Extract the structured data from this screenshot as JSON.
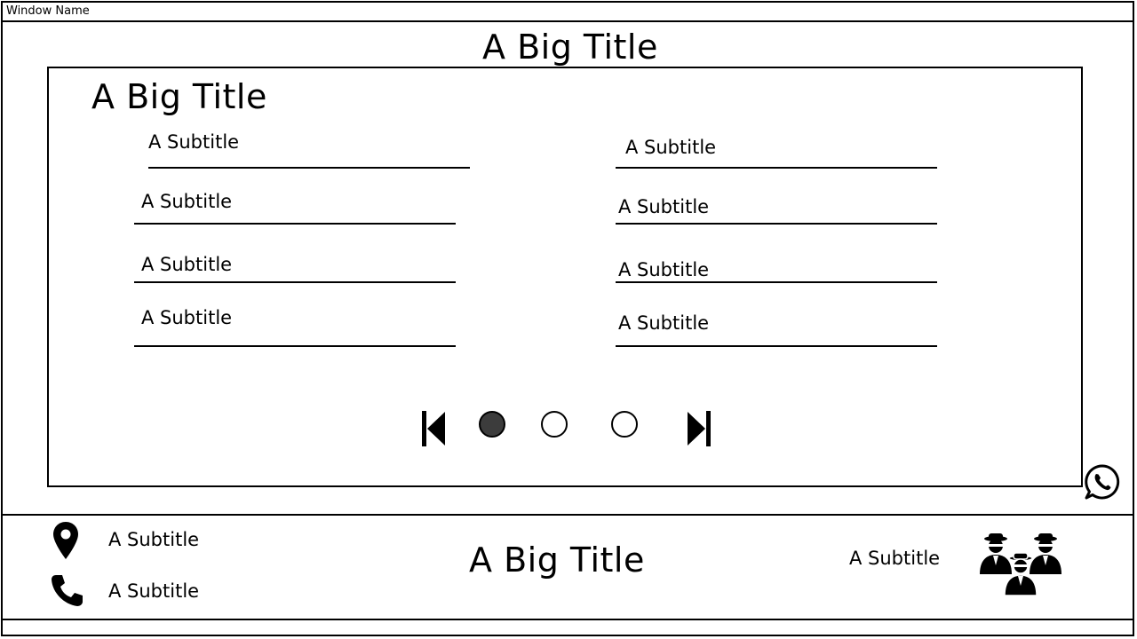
{
  "window": {
    "title": "Window Name"
  },
  "page": {
    "title": "A Big Title"
  },
  "card": {
    "title": "A Big Title",
    "left_fields": [
      "A Subtitle",
      "A Subtitle",
      "A Subtitle",
      "A Subtitle"
    ],
    "right_fields": [
      "A Subtitle",
      "A Subtitle",
      "A Subtitle",
      "A Subtitle"
    ],
    "pagination": {
      "pages": 3,
      "current": 1
    }
  },
  "footer": {
    "location_text": "A Subtitle",
    "phone_text": "A Subtitle",
    "title": "A Big Title",
    "team_text": "A Subtitle"
  },
  "icons": {
    "location": "map-pin-icon",
    "phone": "phone-icon",
    "chat": "whatsapp-icon",
    "team": "agents-group-icon",
    "first": "skip-first-icon",
    "last": "skip-last-icon"
  }
}
